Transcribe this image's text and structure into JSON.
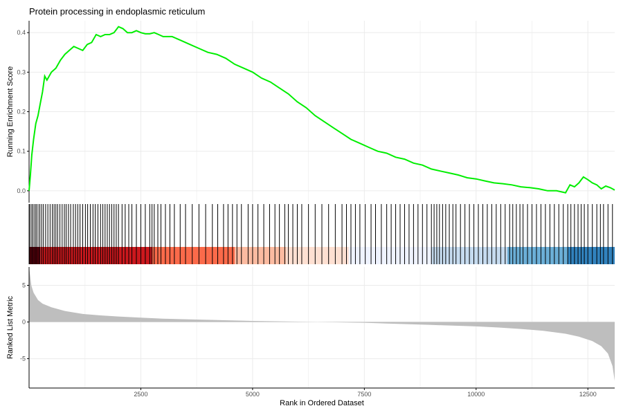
{
  "chart_data": {
    "type": "line",
    "title": "Protein processing in endoplasmic reticulum",
    "xlabel": "Rank in Ordered Dataset",
    "xlim": [
      0,
      13100
    ],
    "x_ticks": [
      2500,
      5000,
      7500,
      10000,
      12500
    ],
    "grid": true,
    "colors": {
      "es_line": "#00ee00",
      "hit_line": "#000000",
      "ranked_fill": "#bebebe",
      "heat": [
        "#67000d",
        "#cb181d",
        "#fb6a4a",
        "#fcbba1",
        "#fee0d2",
        "#eff3ff",
        "#c6dbef",
        "#6baed6",
        "#3182bd"
      ]
    },
    "panels": {
      "enrichment": {
        "ylabel": "Running Enrichment Score",
        "ylim": [
          -0.03,
          0.43
        ],
        "y_ticks": [
          0.0,
          0.1,
          0.2,
          0.3,
          0.4
        ],
        "y_tick_labels": [
          "0.0",
          "0.1",
          "0.2",
          "0.3",
          "0.4"
        ],
        "x": [
          0,
          30,
          60,
          100,
          150,
          200,
          250,
          300,
          350,
          400,
          500,
          600,
          700,
          800,
          900,
          1000,
          1100,
          1200,
          1300,
          1400,
          1500,
          1600,
          1700,
          1800,
          1900,
          2000,
          2100,
          2200,
          2300,
          2400,
          2500,
          2600,
          2700,
          2800,
          2900,
          3000,
          3200,
          3400,
          3600,
          3800,
          4000,
          4200,
          4400,
          4600,
          4800,
          5000,
          5200,
          5400,
          5600,
          5800,
          6000,
          6200,
          6400,
          6600,
          6800,
          7000,
          7200,
          7400,
          7600,
          7800,
          8000,
          8200,
          8400,
          8600,
          8800,
          9000,
          9200,
          9400,
          9600,
          9800,
          10000,
          10200,
          10400,
          10600,
          10800,
          11000,
          11200,
          11400,
          11600,
          11800,
          12000,
          12100,
          12200,
          12300,
          12400,
          12500,
          12600,
          12700,
          12800,
          12900,
          13000,
          13100
        ],
        "values": [
          0.0,
          0.04,
          0.09,
          0.13,
          0.17,
          0.19,
          0.22,
          0.25,
          0.29,
          0.28,
          0.3,
          0.31,
          0.33,
          0.345,
          0.355,
          0.365,
          0.36,
          0.355,
          0.37,
          0.375,
          0.395,
          0.39,
          0.395,
          0.395,
          0.4,
          0.415,
          0.41,
          0.4,
          0.4,
          0.405,
          0.4,
          0.397,
          0.397,
          0.4,
          0.395,
          0.39,
          0.39,
          0.38,
          0.37,
          0.36,
          0.35,
          0.345,
          0.335,
          0.32,
          0.31,
          0.3,
          0.285,
          0.275,
          0.26,
          0.245,
          0.225,
          0.21,
          0.19,
          0.175,
          0.16,
          0.145,
          0.13,
          0.12,
          0.11,
          0.1,
          0.095,
          0.085,
          0.08,
          0.07,
          0.065,
          0.055,
          0.05,
          0.045,
          0.04,
          0.033,
          0.03,
          0.025,
          0.02,
          0.018,
          0.015,
          0.01,
          0.008,
          0.005,
          0.0,
          0.0,
          -0.005,
          0.015,
          0.01,
          0.02,
          0.035,
          0.028,
          0.02,
          0.015,
          0.005,
          0.012,
          0.008,
          0.002
        ]
      },
      "hits": {
        "x": [
          20,
          60,
          90,
          130,
          160,
          200,
          240,
          280,
          320,
          370,
          420,
          470,
          520,
          560,
          600,
          640,
          690,
          740,
          790,
          830,
          880,
          930,
          990,
          1040,
          1090,
          1140,
          1200,
          1260,
          1310,
          1370,
          1430,
          1480,
          1540,
          1600,
          1650,
          1700,
          1750,
          1800,
          1850,
          1900,
          1950,
          2000,
          2080,
          2150,
          2230,
          2300,
          2400,
          2500,
          2600,
          2700,
          2750,
          2800,
          2880,
          2950,
          3050,
          3150,
          3250,
          3380,
          3500,
          3650,
          3800,
          3950,
          4100,
          4220,
          4350,
          4450,
          4550,
          4650,
          4750,
          4900,
          5000,
          5120,
          5250,
          5380,
          5500,
          5600,
          5720,
          5800,
          5900,
          6000,
          6100,
          6250,
          6400,
          6550,
          6700,
          6850,
          7000,
          7100,
          7200,
          7300,
          7400,
          7520,
          7650,
          7750,
          7880,
          8000,
          8100,
          8200,
          8300,
          8400,
          8500,
          8600,
          8700,
          8800,
          8900,
          9000,
          9060,
          9120,
          9180,
          9250,
          9320,
          9400,
          9480,
          9550,
          9650,
          9750,
          9850,
          9950,
          10050,
          10150,
          10250,
          10350,
          10450,
          10550,
          10650,
          10750,
          10820,
          10900,
          10980,
          11050,
          11150,
          11250,
          11350,
          11450,
          11550,
          11650,
          11750,
          11850,
          11950,
          12050,
          12120,
          12200,
          12280,
          12350,
          12420,
          12500,
          12600,
          12700,
          12780,
          12850,
          12950,
          13050
        ],
        "heat_bands": [
          0,
          250,
          2750,
          4600,
          5750,
          7150,
          9000,
          10700,
          12050,
          13100
        ]
      },
      "ranked": {
        "ylabel": "Ranked List Metric",
        "ylim": [
          -9,
          7.5
        ],
        "y_ticks": [
          -5,
          0,
          5
        ],
        "y_tick_labels": [
          "-5",
          "0",
          "5"
        ],
        "x": [
          0,
          50,
          100,
          200,
          300,
          500,
          800,
          1200,
          1600,
          2000,
          2500,
          3000,
          4000,
          5000,
          6000,
          7000,
          7500,
          8000,
          9000,
          10000,
          10500,
          11000,
          11500,
          12000,
          12300,
          12600,
          12800,
          12950,
          13050,
          13100
        ],
        "values": [
          7.5,
          5.0,
          4.0,
          3.0,
          2.5,
          2.0,
          1.5,
          1.1,
          0.9,
          0.75,
          0.6,
          0.45,
          0.3,
          0.15,
          0.05,
          -0.05,
          -0.1,
          -0.2,
          -0.4,
          -0.6,
          -0.75,
          -0.95,
          -1.2,
          -1.6,
          -2.0,
          -2.6,
          -3.3,
          -4.3,
          -6.0,
          -8.0
        ]
      }
    }
  }
}
